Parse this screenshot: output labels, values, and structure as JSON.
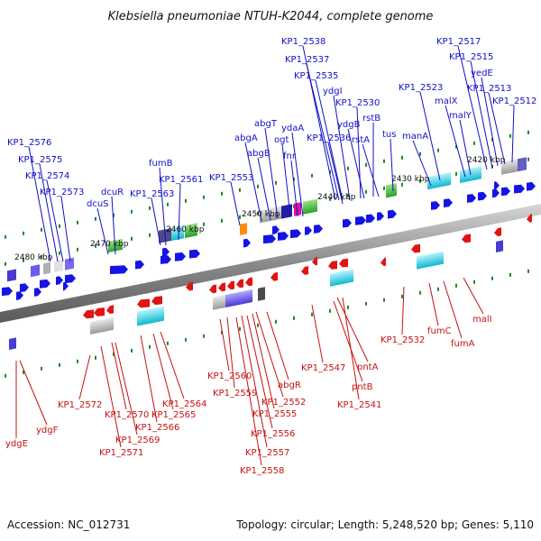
{
  "title": "Klebsiella pneumoniae NTUH-K2044, complete genome",
  "footer": {
    "accession": "Accession: NC_012731",
    "summary": "Topology: circular; Length: 5,248,520 bp; Genes: 5,110"
  },
  "colors": {
    "forward_label": "#1010c8",
    "reverse_label": "#c81010",
    "backbone": "#8a8a8a",
    "tick": "#1e8a1e"
  },
  "ticks": [
    "2420 kbp",
    "2430 kbp",
    "2440 kbp",
    "2450 kbp",
    "2460 kbp",
    "2470 kbp",
    "2480 kbp"
  ],
  "forward_labels": [
    "KP1_2576",
    "KP1_2575",
    "KP1_2574",
    "KP1_2573",
    "dcuS",
    "dcuR",
    "fumB",
    "KP1_2563",
    "KP1_2561",
    "KP1_2553",
    "abgA",
    "abgT",
    "abgB",
    "ogt",
    "ydaA",
    "fnr",
    "KP1_2538",
    "KP1_2537",
    "KP1_2535",
    "ydgI",
    "KP1_2536",
    "KP1_2530",
    "ydgB",
    "rstB",
    "rstA",
    "tus",
    "manA",
    "KP1_2523",
    "KP1_2517",
    "KP1_2515",
    "yedE",
    "malX",
    "malY",
    "KP1_2513",
    "KP1_2512"
  ],
  "reverse_labels": [
    "ydgE",
    "ydgF",
    "KP1_2572",
    "KP1_2570",
    "KP1_2571",
    "KP1_2569",
    "KP1_2566",
    "KP1_2565",
    "KP1_2564",
    "KP1_2560",
    "KP1_2559",
    "KP1_2558",
    "KP1_2557",
    "KP1_2556",
    "KP1_2555",
    "KP1_2552",
    "abgR",
    "KP1_2547",
    "pntA",
    "pntB",
    "KP1_2541",
    "KP1_2532",
    "fumC",
    "fumA",
    "malI"
  ]
}
